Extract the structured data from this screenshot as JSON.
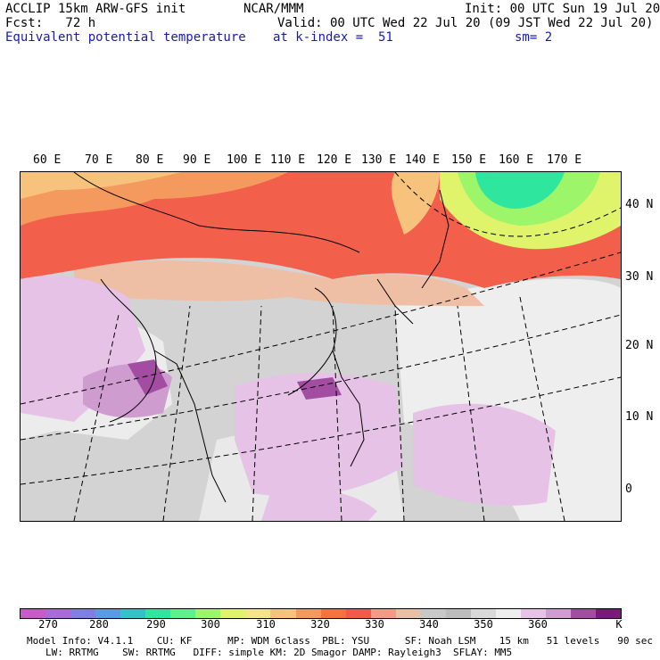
{
  "header": {
    "line1_left": "ACCLIP 15km ARW-GFS init",
    "line1_center": "NCAR/MMM",
    "line1_right": "Init: 00 UTC Sun 19 Jul 20",
    "line2_left": "Fcst:   72 h",
    "line2_right": "Valid: 00 UTC Wed 22 Jul 20 (09 JST Wed 22 Jul 20)",
    "line3_left": "Equivalent potential temperature",
    "line3_center": "at k-index =  51",
    "line3_right": "sm= 2"
  },
  "map": {
    "lon_labels": [
      "60 E",
      "70 E",
      "80 E",
      "90 E",
      "100 E",
      "110 E",
      "120 E",
      "130 E",
      "140 E",
      "150 E",
      "160 E",
      "170 E"
    ],
    "lat_labels": [
      "40 N",
      "30 N",
      "20 N",
      "10 N",
      "0"
    ]
  },
  "colorbar": {
    "labels": [
      "270",
      "280",
      "290",
      "300",
      "310",
      "320",
      "330",
      "340",
      "350",
      "360"
    ],
    "unit": "K",
    "colors": [
      "#c75bc7",
      "#a86bd8",
      "#7f7fe6",
      "#5a9be6",
      "#33c3c7",
      "#2fe69e",
      "#5ef08a",
      "#9df56a",
      "#dff36b",
      "#f5e48a",
      "#f6c27c",
      "#f59a5e",
      "#f5723e",
      "#f25a4a",
      "#f49a86",
      "#e8c0a8",
      "#c8c8c8",
      "#bcbcbc",
      "#d9d9d9",
      "#eeeeee",
      "#e6c2e6",
      "#cf9ccf",
      "#a24da2",
      "#7a1a7a"
    ]
  },
  "footer": {
    "line1": "Model Info: V4.1.1    CU: KF      MP: WDM 6class  PBL: YSU      SF: Noah LSM    15 km   51 levels   90 sec",
    "line2": "LW: RRTMG    SW: RRTMG   DIFF: simple KM: 2D Smagor DAMP: Rayleigh3  SFLAY: MM5"
  }
}
